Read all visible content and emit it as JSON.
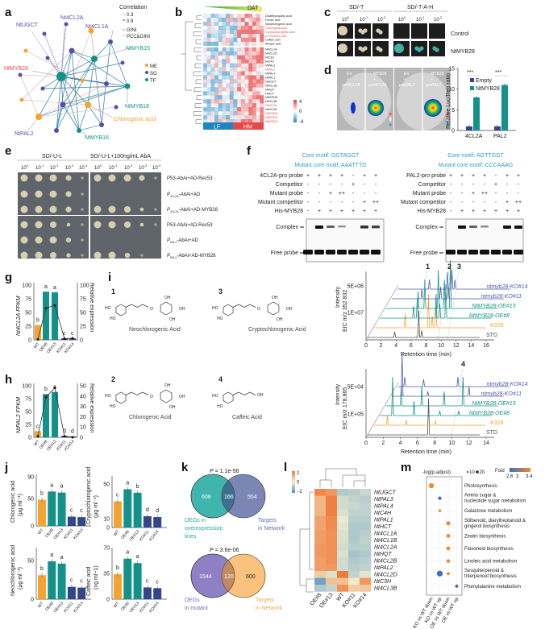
{
  "panel_labels": {
    "a": "a",
    "b": "b",
    "c": "c",
    "d": "d",
    "e": "e",
    "f": "f",
    "g": "g",
    "h": "h",
    "i": "i",
    "j": "j",
    "k": "k",
    "l": "l",
    "m": "m"
  },
  "a": {
    "legend_title": "Correlation",
    "edge_legend": [
      "0.3",
      "0.9",
      "GINI",
      "PCC&GINI"
    ],
    "node_legend": [
      {
        "label": "ME",
        "color": "#F5A431"
      },
      {
        "label": "SG",
        "color": "#5B4BA8"
      },
      {
        "label": "TF",
        "color": "#14928A"
      }
    ],
    "node_labels": {
      "ugct": "NtUGCT",
      "cl2a": "Nt4CL2A",
      "cl1a": "Nt4CL1A",
      "myb15": "NtMYB15",
      "myb28": "NtMYB28",
      "myb18": "NtMYB18",
      "cga": "Chlorogenic acid",
      "pal2": "NtPAL2",
      "myb16": "NtMYB16"
    }
  },
  "b": {
    "gradient_label": "DAT",
    "rows": [
      "Dicaffeoylquinic acid",
      "Ferulic acid",
      "Neochlorogenic acid",
      "Chlorogenic acid",
      "Cryptochlorogenic acid",
      "p-Coumaric acid",
      "Caffeic acid",
      "Sinapic acid",
      "Nt4CL1A",
      "Nt4CL2D",
      "NtC3H",
      "NtC4H",
      "NtPAL3",
      "NtPAL2",
      "NtPAL4",
      "NtPAL1",
      "NtUGCT",
      "Nt4CL1B",
      "NtHQT",
      "NtHCT",
      "NtMYB15",
      "Nt4CL3B",
      "Nt4CL2A",
      "Nt4CL2B",
      "NtMYB28",
      "NtMYB18",
      "NtMYB16"
    ],
    "highlighted_rows": [
      "Chlorogenic acid",
      "Cryptochlorogenic acid",
      "p-Coumaric acid",
      "NtPAL2",
      "Nt4CL2A",
      "NtMYB28",
      "NtMYB18",
      "NtMYB16"
    ],
    "groups": [
      "LF",
      "HM"
    ],
    "scale": [
      "4",
      "0",
      "-4"
    ]
  },
  "c": {
    "media": [
      "SD/-T",
      "SD/-T-A-H"
    ],
    "dilutions": [
      "10",
      "0",
      "10",
      "-1",
      "10",
      "-2"
    ],
    "rows": [
      "Control",
      "NtMYB28"
    ]
  },
  "d": {
    "leaf_labels": [
      [
        "EV",
        "+",
        "pro4CL2A"
      ],
      [
        "MYB28",
        "+",
        "pro4CL2A"
      ],
      [
        "EV",
        "+",
        "proPAL2"
      ],
      [
        "MYB28",
        "+",
        "proPAL2"
      ]
    ]
  },
  "e": {
    "media": [
      "SD/-U-L",
      "SD/-U-L+100ng/mL AbA"
    ],
    "dilution_exps": [
      "0",
      "-1",
      "-2",
      "-3",
      "-4"
    ],
    "dilution_base": "10",
    "rows": [
      {
        "text": "P53-AbAi+AD-Rec53"
      },
      {
        "p": "P",
        "sub": "4CL2A",
        "text": "-AbAi+AD"
      },
      {
        "p": "P",
        "sub": "4CL2A",
        "text": "-AbAi+AD-MYB28"
      },
      {
        "text": "P53-AbAi+AD-Rec53"
      },
      {
        "p": "P",
        "sub": "PAL2",
        "text": "-AbAi+AD"
      },
      {
        "p": "P",
        "sub": "PAL2",
        "text": "-AbAi+AD-MYB28"
      }
    ]
  },
  "f": {
    "left": {
      "core": "Core motif: GGTAGGT",
      "mutant": "Mutant core motif: AAATTTG",
      "rows": [
        {
          "label": "4CL2A-pro probe",
          "v": [
            "+",
            "+",
            "+",
            "+",
            "-",
            "+",
            "+"
          ]
        },
        {
          "label": "Competitor",
          "v": [
            "-",
            "-",
            "-",
            "-",
            "+",
            "-",
            "-"
          ]
        },
        {
          "label": "Mutant probe",
          "v": [
            "-",
            "-",
            "+",
            "++",
            "-",
            "-",
            "-"
          ]
        },
        {
          "label": "Mutant competitor",
          "v": [
            "-",
            "-",
            "-",
            "-",
            "-",
            "+",
            "++"
          ]
        },
        {
          "label": "His-MYB28",
          "v": [
            "-",
            "+",
            "+",
            "+",
            "+",
            "+",
            "+"
          ]
        }
      ],
      "complex_bands": [
        0,
        1,
        0.5,
        0.2,
        0,
        0.8,
        0.7
      ]
    },
    "right": {
      "core": "Core motif: AGTTGGT",
      "mutant": "Mutant core motif: CCCAAAG",
      "rows": [
        {
          "label": "PAL2-pro probe",
          "v": [
            "+",
            "+",
            "+",
            "+",
            "-",
            "+",
            "+"
          ]
        },
        {
          "label": "Competitor",
          "v": [
            "-",
            "-",
            "-",
            "-",
            "+",
            "-",
            "-"
          ]
        },
        {
          "label": "Mutant probe",
          "v": [
            "-",
            "-",
            "+",
            "++",
            "-",
            "-",
            "-"
          ]
        },
        {
          "label": "Mutant competitor",
          "v": [
            "-",
            "-",
            "-",
            "-",
            "-",
            "+",
            "++"
          ]
        },
        {
          "label": "His-MYB28",
          "v": [
            "-",
            "+",
            "+",
            "+",
            "+",
            "+",
            "+"
          ]
        }
      ],
      "complex_bands": [
        0,
        1,
        0.5,
        0.25,
        0,
        1,
        1
      ]
    },
    "complex_label": "Complex",
    "free_label": "Free probe"
  },
  "i": {
    "compounds": [
      {
        "num": "1",
        "name": "Neochlorogenic Acid"
      },
      {
        "num": "3",
        "name": "Cryptochlorogenic Acid"
      },
      {
        "num": "2",
        "name": "Chlorogenic Acid"
      },
      {
        "num": "4",
        "name": "Caffeic Acid"
      }
    ],
    "atoms": {
      "ho": "HO",
      "oh": "OH",
      "o": "O"
    }
  },
  "chart_data": [
    {
      "id": "d",
      "type": "bar",
      "ylabel": "Relative Luc/Ren ratio",
      "ylim": [
        0,
        15
      ],
      "yticks": [
        "0",
        "5",
        "10",
        "15"
      ],
      "categories": [
        "4CL2A",
        "PAL2"
      ],
      "series": [
        {
          "name": "Empty",
          "color": "#34468A",
          "values": [
            1,
            1
          ]
        },
        {
          "name": "NtMYB28",
          "color": "#14928A",
          "values": [
            8,
            11
          ]
        }
      ],
      "annotations": [
        "***",
        "***"
      ]
    },
    {
      "id": "g",
      "type": "bar+line",
      "ylabel": "Nt4CL2A FPKM",
      "y2label": "Relative expression",
      "ylim": [
        0,
        100
      ],
      "yticks": [
        "0",
        "25",
        "50",
        "75",
        "100"
      ],
      "y2lim": [
        0,
        100
      ],
      "y2ticks": [
        "0",
        "25",
        "50",
        "75",
        "100"
      ],
      "categories": [
        "WT",
        "OE#8",
        "OE#13",
        "KO#11",
        "KO#14"
      ],
      "bars": [
        27,
        88,
        87,
        3,
        3
      ],
      "line": [
        1,
        58,
        63,
        2,
        3
      ],
      "letters": [
        "b",
        "a",
        "a",
        "c",
        "c"
      ]
    },
    {
      "id": "h",
      "type": "bar+line",
      "ylabel": "NtPAL2 FPKM",
      "y2label": "Relative expression",
      "ylim": [
        0,
        100
      ],
      "yticks": [
        "0",
        "25",
        "50",
        "75",
        "100"
      ],
      "y2lim": [
        0,
        50
      ],
      "y2ticks": [
        "0",
        "10",
        "20",
        "30",
        "40",
        "50"
      ],
      "categories": [
        "WT",
        "OE#8",
        "OE#13",
        "KO#11",
        "KO#14"
      ],
      "bars": [
        12,
        84,
        88,
        3,
        2
      ],
      "line": [
        1,
        39,
        48,
        1,
        0
      ],
      "letters": [
        "c",
        "b",
        "a",
        "d",
        "d"
      ]
    },
    {
      "id": "i1",
      "type": "line",
      "ylabel": "Intensity",
      "ylabel2": "EIC m/z 352.832",
      "xlabel": "Retention time (min)",
      "xlim": [
        0,
        16
      ],
      "xticks": [
        "0",
        "2",
        "4",
        "6",
        "8",
        "10",
        "12",
        "14",
        "16"
      ],
      "yticks": [
        "5E+06",
        "1E+07"
      ],
      "peak_labels": [
        "1",
        "2",
        "3"
      ],
      "series": [
        {
          "name": "STD",
          "color": "#555555",
          "peaks": [
            [
              3.6,
              0.12
            ],
            [
              6.8,
              0.55
            ],
            [
              7.2,
              0.15
            ]
          ]
        },
        {
          "name": "K326",
          "color": "#F5A431",
          "peaks": [
            [
              4.2,
              0.3
            ],
            [
              7.3,
              0.7
            ],
            [
              7.8,
              0.25
            ],
            [
              8.3,
              0.45
            ]
          ]
        },
        {
          "name": "NtMYB28-OE#8",
          "color": "#14928A",
          "peaks": [
            [
              4.5,
              0.25
            ],
            [
              5.0,
              0.4
            ],
            [
              7.5,
              0.5
            ],
            [
              8.0,
              0.3
            ],
            [
              8.8,
              0.7
            ]
          ]
        },
        {
          "name": "NtMYB28-OE#13",
          "color": "#14928A",
          "peaks": [
            [
              4.3,
              0.35
            ],
            [
              5.2,
              0.6
            ],
            [
              7.0,
              0.8
            ],
            [
              7.8,
              0.6
            ],
            [
              8.6,
              1.0
            ]
          ]
        },
        {
          "name": "ntmyb28-KO#11",
          "color": "#4D5BA6",
          "peaks": [
            [
              4.0,
              0.2
            ],
            [
              6.5,
              0.25
            ],
            [
              7.5,
              0.3
            ]
          ]
        },
        {
          "name": "ntmyb28-KO#14",
          "color": "#4D5BA6",
          "peaks": [
            [
              4.2,
              0.2
            ],
            [
              6.6,
              0.35
            ],
            [
              7.2,
              0.4
            ],
            [
              7.6,
              0.2
            ]
          ]
        }
      ]
    },
    {
      "id": "i2",
      "type": "line",
      "ylabel": "Intensity",
      "ylabel2": "EIC m/z 178.865",
      "xlabel": "Retention time (min)",
      "xlim": [
        0,
        14
      ],
      "xticks": [
        "0",
        "2",
        "4",
        "6",
        "8",
        "10",
        "12",
        "14"
      ],
      "yticks": [
        "5E+04",
        "1E+05"
      ],
      "peak_labels": [
        "4"
      ],
      "series": [
        {
          "name": "STD",
          "color": "#555555",
          "peaks": [
            [
              7.1,
              0.75
            ]
          ]
        },
        {
          "name": "K326",
          "color": "#F5A431",
          "peaks": [
            [
              1.6,
              0.2
            ],
            [
              3.8,
              0.1
            ],
            [
              7.2,
              0.1
            ]
          ]
        },
        {
          "name": "NtMYB28-OE#8",
          "color": "#14928A",
          "peaks": [
            [
              1.5,
              0.8
            ],
            [
              4.0,
              0.3
            ],
            [
              7.0,
              0.1
            ],
            [
              9.2,
              0.1
            ]
          ]
        },
        {
          "name": "NtMYB28-OE#13",
          "color": "#14928A",
          "peaks": [
            [
              1.8,
              0.4
            ],
            [
              4.2,
              0.4
            ],
            [
              6.8,
              0.3
            ],
            [
              9.0,
              0.6
            ]
          ]
        },
        {
          "name": "ntmyb28-KO#11",
          "color": "#4D5BA6",
          "peaks": [
            [
              1.2,
              0.9
            ],
            [
              4.2,
              0.1
            ],
            [
              9.0,
              0.2
            ]
          ]
        },
        {
          "name": "ntmyb28-KO#14",
          "color": "#4D5BA6",
          "peaks": [
            [
              0.8,
              0.2
            ],
            [
              3.0,
              0.15
            ],
            [
              7.0,
              0.2
            ]
          ]
        }
      ]
    },
    {
      "id": "j1",
      "type": "bar",
      "ylabel": "Chlorogenic acid",
      "yunit": "(μg ml⁻¹)",
      "ylim": [
        0,
        90
      ],
      "yticks": [
        "0",
        "50",
        "90"
      ],
      "categories": [
        "WT",
        "OE#8",
        "OE#13",
        "KO#11",
        "KO#14"
      ],
      "values": [
        48,
        63,
        61,
        17,
        16
      ],
      "letters": [
        "b",
        "a",
        "a",
        "c",
        "c"
      ]
    },
    {
      "id": "j2",
      "type": "bar",
      "ylabel": "Cryptochlorogenic acid",
      "yunit": "(μg ml⁻¹)",
      "ylim": [
        0,
        50
      ],
      "yticks": [
        "0",
        "10",
        "50"
      ],
      "categories": [
        "WT",
        "OE#8",
        "OE#13",
        "KO#11",
        "KO#14"
      ],
      "values": [
        30,
        44,
        40,
        13,
        12
      ],
      "letters": [
        "c",
        "a",
        "b",
        "d",
        "d"
      ]
    },
    {
      "id": "j3",
      "type": "bar",
      "ylabel": "Neochlorogenic acid",
      "yunit": "(μg ml⁻¹)",
      "ylim": [
        0,
        65
      ],
      "yticks": [
        "0",
        "50"
      ],
      "categories": [
        "WT",
        "OE#8",
        "OE#13",
        "KO#11",
        "KO#14"
      ],
      "values": [
        31,
        49,
        46,
        16,
        15
      ],
      "letters": [
        "b",
        "a",
        "a",
        "c",
        "c"
      ]
    },
    {
      "id": "j4",
      "type": "bar",
      "ylabel": "Caffeic acid",
      "yunit": "(ng ml−1)",
      "ylim": [
        0,
        70
      ],
      "yticks": [
        "0",
        "35",
        "70"
      ],
      "categories": [
        "WT",
        "OE#8",
        "OE#13",
        "KO#11",
        "KO#14"
      ],
      "values": [
        34,
        55,
        49,
        16,
        15
      ],
      "letters": [
        "b",
        "a",
        "a",
        "c",
        "c"
      ]
    },
    {
      "id": "l",
      "type": "heatmap",
      "scale": [
        "2",
        "0",
        "−2"
      ],
      "zlim": [
        -2,
        2
      ],
      "columns": [
        "OE#8",
        "OE#13",
        "WT",
        "KO#11",
        "KO#14"
      ],
      "rows": [
        "NtUGCT",
        "NtPAL3",
        "NtPAL4",
        "NtC4H",
        "NtPAL1",
        "NtHCT",
        "Nt4CL1A",
        "Nt4CL1B",
        "Nt4CL2A",
        "NtHQT",
        "Nt4CL2B",
        "NtPAL2",
        "Nt4CL2D",
        "NtC3H",
        "Nt4CL3B"
      ],
      "values": [
        [
          1.8,
          1.5,
          -0.8,
          -0.7,
          -0.5
        ],
        [
          1.0,
          1.9,
          -0.4,
          -0.6,
          -0.7
        ],
        [
          1.0,
          1.9,
          -0.4,
          -0.5,
          -0.6
        ],
        [
          1.0,
          1.9,
          -0.3,
          -0.6,
          -0.6
        ],
        [
          1.3,
          1.7,
          -0.1,
          -0.7,
          -0.7
        ],
        [
          1.3,
          1.7,
          -0.2,
          -0.8,
          -0.8
        ],
        [
          1.4,
          1.6,
          -0.3,
          -0.8,
          -0.7
        ],
        [
          1.4,
          1.6,
          -0.3,
          -0.8,
          -0.6
        ],
        [
          1.5,
          1.6,
          -0.4,
          -0.7,
          -0.7
        ],
        [
          1.5,
          1.6,
          -0.3,
          -0.9,
          -0.8
        ],
        [
          1.4,
          1.6,
          -0.4,
          -0.8,
          -0.7
        ],
        [
          1.4,
          1.5,
          -0.4,
          -0.7,
          -0.6
        ],
        [
          0.6,
          -0.3,
          2.0,
          -0.6,
          -0.2
        ],
        [
          -1.6,
          0.8,
          0.8,
          0.1,
          1.5
        ],
        [
          -0.8,
          -0.6,
          1.6,
          0.6,
          0.7
        ]
      ]
    },
    {
      "id": "m",
      "type": "dot",
      "size_legend_title": "-log(p.adjust)",
      "size_legend": [
        "10",
        "20"
      ],
      "color_legend_title": "Fold",
      "color_legend": [
        "2.6",
        "3",
        "3.4"
      ],
      "columns": [
        "KO vs WT down",
        "KO vs WT up",
        "OE vs WT down",
        "OE vs WT up"
      ],
      "rows": [
        "Photosynthesis",
        "Amino sugar & nucleotide sugar metabolism",
        "Galactose metabolism",
        "Stilbenoid, diarylheptanoid & gingerol biosynthesis",
        "Zeatin biosynthesis",
        "Flavonoid biosynthesis",
        "Linoleic acid metabolism",
        "Sesquiterpenoid & triterpenoid biosynthesis",
        "Phenylalanine metabolism"
      ],
      "points": [
        {
          "row": 0,
          "col": 0,
          "size": 14,
          "fold": 3.4
        },
        {
          "row": 1,
          "col": 1,
          "size": 6,
          "fold": 2.6
        },
        {
          "row": 2,
          "col": 1,
          "size": 4,
          "fold": 3.3
        },
        {
          "row": 3,
          "col": 2,
          "size": 9,
          "fold": 3.4
        },
        {
          "row": 4,
          "col": 2,
          "size": 8,
          "fold": 3.4
        },
        {
          "row": 5,
          "col": 2,
          "size": 8,
          "fold": 3.4
        },
        {
          "row": 6,
          "col": 2,
          "size": 7,
          "fold": 3.4
        },
        {
          "row": 7,
          "col": 1,
          "size": 18,
          "fold": 2.6
        },
        {
          "row": 7,
          "col": 2,
          "size": 5,
          "fold": 3.4
        },
        {
          "row": 8,
          "col": 3,
          "size": 6,
          "fold": 2.7
        }
      ]
    }
  ],
  "k": {
    "venn1": {
      "p": "P",
      "p_value": " = 1.1e-56",
      "left": "608",
      "overlap": "166",
      "right": "554",
      "left_label": [
        "DEGs in",
        "overexpression",
        "lines"
      ],
      "right_label": [
        "Targets",
        "in Network"
      ]
    },
    "venn2": {
      "p": "P",
      "p_value": " = 3.6e-06",
      "left": "1544",
      "overlap": "120",
      "right": "600",
      "left_label": [
        "DEGs",
        "in mutant"
      ],
      "right_label": [
        "Targets",
        "in Network"
      ]
    }
  },
  "colors": {
    "orange": "#F5A431",
    "teal": "#14928A",
    "navy": "#34468A",
    "purple": "#5B4BA8",
    "red": "#E8484A"
  }
}
